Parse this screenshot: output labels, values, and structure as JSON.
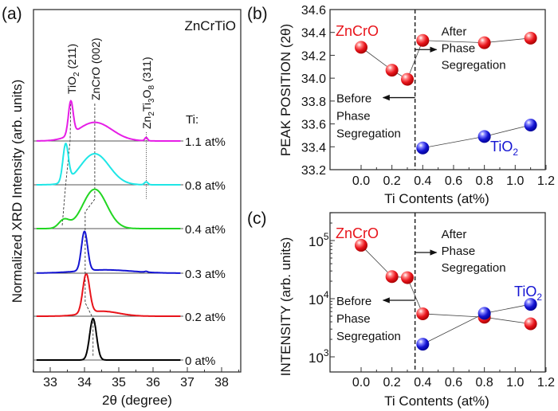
{
  "chart_data": [
    {
      "panel_label": "(a)",
      "type": "line",
      "title": "ZnCrTiO",
      "xlabel": "2θ (degree)",
      "ylabel": "Normalized XRD Intensity (arb. units)",
      "xlim": [
        32.5,
        38.5
      ],
      "xticks": [
        33,
        34,
        35,
        36,
        37,
        38
      ],
      "legend_header": "Ti:",
      "annotations": {
        "tio2": "TiO",
        "tio2_sub": "2",
        "tio2_hkl": " (211)",
        "zncro": "ZnCrO (002)",
        "zn2ti3o8_a": "Zn",
        "zn2ti3o8_s1": "2",
        "zn2ti3o8_b": "Ti",
        "zn2ti3o8_s2": "3",
        "zn2ti3o8_c": "O",
        "zn2ti3o8_s3": "8",
        "zn2ti3o8_hkl": " (311)"
      },
      "series": [
        {
          "name": "0 at%",
          "color": "#000000",
          "peaks": [
            {
              "center": 34.25,
              "amplitude": 1.0,
              "sigma": 0.1
            }
          ]
        },
        {
          "name": "0.2 at%",
          "color": "#e8141b",
          "peaks": [
            {
              "center": 34.05,
              "amplitude": 0.95,
              "sigma": 0.1
            },
            {
              "center": 34.5,
              "amplitude": 0.12,
              "sigma": 0.5
            }
          ]
        },
        {
          "name": "0.3 at%",
          "color": "#1414d2",
          "peaks": [
            {
              "center": 34.0,
              "amplitude": 0.95,
              "sigma": 0.09
            },
            {
              "center": 34.6,
              "amplitude": 0.08,
              "sigma": 0.8
            },
            {
              "center": 35.8,
              "amplitude": 0.02,
              "sigma": 0.04
            }
          ]
        },
        {
          "name": "0.4 at%",
          "color": "#22d622",
          "peaks": [
            {
              "center": 34.3,
              "amplitude": 0.95,
              "sigma": 0.35
            },
            {
              "center": 33.4,
              "amplitude": 0.2,
              "sigma": 0.15
            }
          ]
        },
        {
          "name": "0.8 at%",
          "color": "#1fe6e6",
          "peaks": [
            {
              "center": 33.45,
              "amplitude": 0.9,
              "sigma": 0.08
            },
            {
              "center": 34.3,
              "amplitude": 0.75,
              "sigma": 0.42
            },
            {
              "center": 35.8,
              "amplitude": 0.07,
              "sigma": 0.05
            }
          ]
        },
        {
          "name": "1.1 at%",
          "color": "#e61ee6",
          "peaks": [
            {
              "center": 33.6,
              "amplitude": 0.8,
              "sigma": 0.07
            },
            {
              "center": 34.3,
              "amplitude": 0.45,
              "sigma": 0.5
            },
            {
              "center": 35.8,
              "amplitude": 0.08,
              "sigma": 0.04
            }
          ]
        }
      ]
    },
    {
      "panel_label": "(b)",
      "type": "scatter",
      "xlabel": "Ti Contents (at%)",
      "ylabel": "PEAK POSITION (2θ)",
      "xlim": [
        -0.2,
        1.2
      ],
      "ylim": [
        33.2,
        34.6
      ],
      "xticks": [
        "0.0",
        "0.2",
        "0.4",
        "0.6",
        "0.8",
        "1.0",
        "1.2"
      ],
      "yticks": [
        "33.2",
        "33.4",
        "33.6",
        "33.8",
        "34.0",
        "34.2",
        "34.4",
        "34.6"
      ],
      "divider_x": 0.35,
      "before_label": [
        "Before",
        "Phase",
        "Segregation"
      ],
      "after_label": [
        "After",
        "Phase",
        "Segregation"
      ],
      "series": [
        {
          "name": "ZnCrO",
          "color": "#e8141b",
          "x": [
            0.0,
            0.2,
            0.3,
            0.4,
            0.8,
            1.1
          ],
          "y": [
            34.27,
            34.07,
            33.99,
            34.33,
            34.31,
            34.35
          ]
        },
        {
          "name": "TiO",
          "name_sub": "2",
          "color": "#1414d2",
          "x": [
            0.4,
            0.8,
            1.1
          ],
          "y": [
            33.39,
            33.49,
            33.59
          ]
        }
      ]
    },
    {
      "panel_label": "(c)",
      "type": "scatter",
      "xlabel": "Ti Contents (at%)",
      "ylabel": "INTENSITY (arb. units)",
      "xlim": [
        -0.2,
        1.2
      ],
      "ylim": [
        540,
        300000
      ],
      "yscale": "log",
      "xticks": [
        "0.0",
        "0.2",
        "0.4",
        "0.6",
        "0.8",
        "1.0",
        "1.2"
      ],
      "yticks": [
        1000,
        10000,
        100000
      ],
      "ytick_labels": [
        {
          "base": "10",
          "exp": "3"
        },
        {
          "base": "10",
          "exp": "4"
        },
        {
          "base": "10",
          "exp": "5"
        }
      ],
      "divider_x": 0.35,
      "before_label": [
        "Before",
        "Phase",
        "Segregation"
      ],
      "after_label": [
        "After",
        "Phase",
        "Segregation"
      ],
      "series": [
        {
          "name": "ZnCrO",
          "color": "#e8141b",
          "x": [
            0.0,
            0.2,
            0.3,
            0.4,
            0.8,
            1.1
          ],
          "y": [
            83000,
            24000,
            23000,
            5500,
            4800,
            3700
          ]
        },
        {
          "name": "TiO",
          "name_sub": "2",
          "color": "#1414d2",
          "x": [
            0.4,
            0.8,
            1.1
          ],
          "y": [
            1650,
            5600,
            8000
          ]
        }
      ]
    }
  ]
}
